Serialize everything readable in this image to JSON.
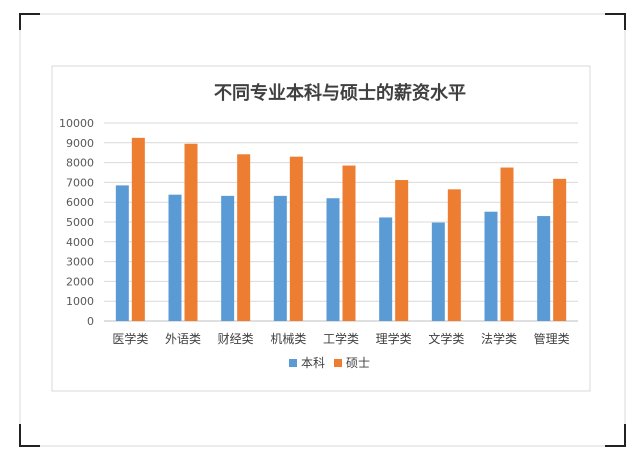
{
  "chart_data": {
    "type": "bar",
    "title": "不同专业本科与硕士的薪资水平",
    "xlabel": "",
    "ylabel": "",
    "categories": [
      "医学类",
      "外语类",
      "财经类",
      "机械类",
      "工学类",
      "理学类",
      "文学类",
      "法学类",
      "管理类"
    ],
    "series": [
      {
        "name": "本科",
        "values": [
          6850,
          6380,
          6320,
          6320,
          6200,
          5230,
          4970,
          5520,
          5300
        ],
        "color": "#5b9bd5"
      },
      {
        "name": "硕士",
        "values": [
          9250,
          8950,
          8420,
          8300,
          7850,
          7120,
          6650,
          7750,
          7180
        ],
        "color": "#ed7d31"
      }
    ],
    "ylim": [
      0,
      10000
    ],
    "yticks": [
      "0",
      "1000",
      "2000",
      "3000",
      "4000",
      "5000",
      "6000",
      "7000",
      "8000",
      "9000",
      "10000"
    ],
    "grid": true,
    "legend": "bottom"
  }
}
